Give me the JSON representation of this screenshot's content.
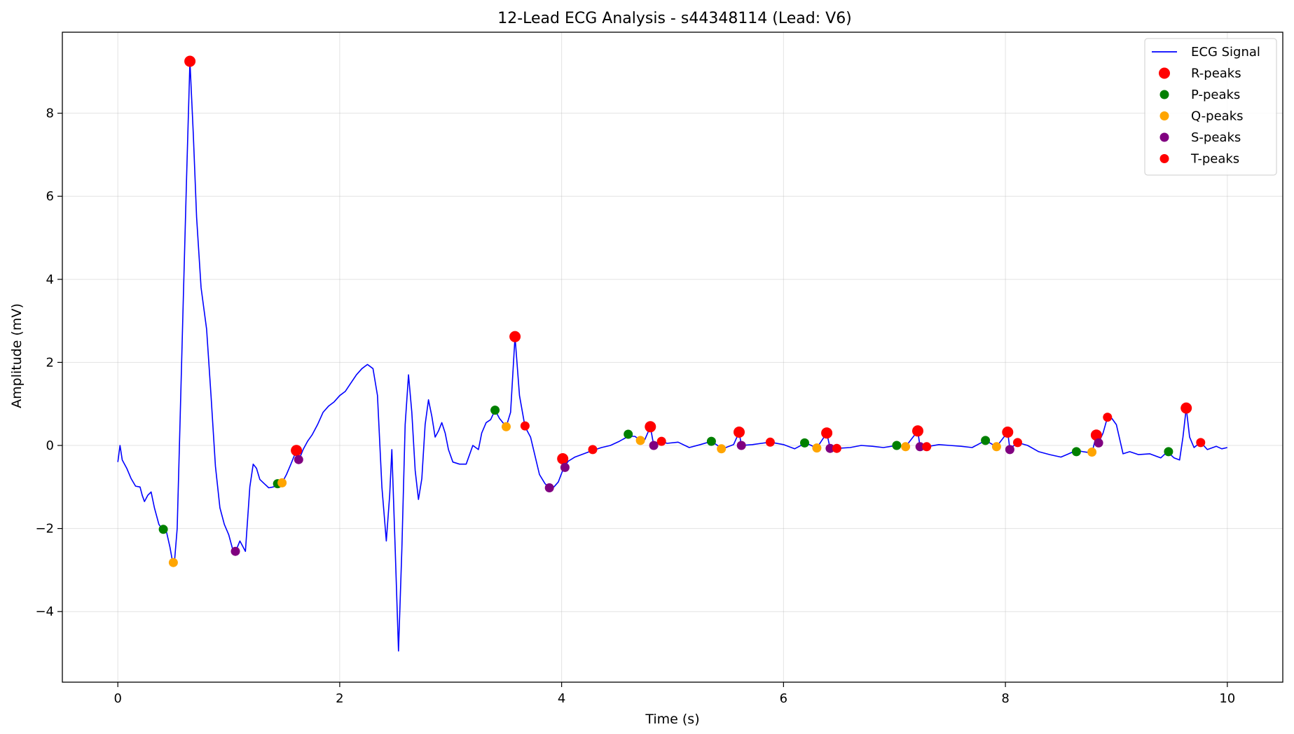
{
  "chart_data": {
    "type": "line",
    "title": "12-Lead ECG Analysis - s44348114 (Lead: V6)",
    "xlabel": "Time (s)",
    "ylabel": "Amplitude (mV)",
    "xlim": [
      -0.5,
      10.5
    ],
    "ylim": [
      -5.7,
      9.95
    ],
    "xticks": [
      0,
      2,
      4,
      6,
      8,
      10
    ],
    "xtick_labels": [
      "0",
      "2",
      "4",
      "6",
      "8",
      "10"
    ],
    "yticks": [
      -4,
      -2,
      0,
      2,
      4,
      6,
      8
    ],
    "ytick_labels": [
      "−4",
      "−2",
      "0",
      "2",
      "4",
      "6",
      "8"
    ],
    "grid": true,
    "legend_position": "top-right",
    "series": [
      {
        "name": "ECG Signal",
        "kind": "line",
        "color": "#0000ff",
        "points": [
          [
            0,
            -0.4
          ],
          [
            0.02,
            0.0
          ],
          [
            0.04,
            -0.35
          ],
          [
            0.08,
            -0.55
          ],
          [
            0.12,
            -0.8
          ],
          [
            0.16,
            -0.98
          ],
          [
            0.2,
            -1.0
          ],
          [
            0.22,
            -1.2
          ],
          [
            0.24,
            -1.35
          ],
          [
            0.27,
            -1.2
          ],
          [
            0.3,
            -1.12
          ],
          [
            0.33,
            -1.5
          ],
          [
            0.37,
            -1.9
          ],
          [
            0.41,
            -2.05
          ],
          [
            0.44,
            -2.1
          ],
          [
            0.47,
            -2.45
          ],
          [
            0.49,
            -2.75
          ],
          [
            0.51,
            -2.83
          ],
          [
            0.535,
            -2.0
          ],
          [
            0.56,
            0.5
          ],
          [
            0.59,
            3.5
          ],
          [
            0.62,
            6.5
          ],
          [
            0.65,
            9.25
          ],
          [
            0.68,
            7.5
          ],
          [
            0.71,
            5.5
          ],
          [
            0.75,
            3.8
          ],
          [
            0.8,
            2.8
          ],
          [
            0.84,
            1.2
          ],
          [
            0.88,
            -0.5
          ],
          [
            0.92,
            -1.5
          ],
          [
            0.96,
            -1.9
          ],
          [
            1.0,
            -2.15
          ],
          [
            1.04,
            -2.55
          ],
          [
            1.07,
            -2.5
          ],
          [
            1.1,
            -2.3
          ],
          [
            1.15,
            -2.55
          ],
          [
            1.19,
            -1.0
          ],
          [
            1.22,
            -0.45
          ],
          [
            1.25,
            -0.55
          ],
          [
            1.28,
            -0.82
          ],
          [
            1.32,
            -0.92
          ],
          [
            1.36,
            -1.02
          ],
          [
            1.4,
            -1.0
          ],
          [
            1.44,
            -0.95
          ],
          [
            1.48,
            -0.9
          ],
          [
            1.52,
            -0.7
          ],
          [
            1.56,
            -0.45
          ],
          [
            1.61,
            -0.12
          ],
          [
            1.64,
            -0.3
          ],
          [
            1.67,
            -0.1
          ],
          [
            1.71,
            0.1
          ],
          [
            1.75,
            0.25
          ],
          [
            1.8,
            0.5
          ],
          [
            1.85,
            0.8
          ],
          [
            1.9,
            0.95
          ],
          [
            1.95,
            1.05
          ],
          [
            2.0,
            1.2
          ],
          [
            2.05,
            1.3
          ],
          [
            2.1,
            1.5
          ],
          [
            2.15,
            1.7
          ],
          [
            2.2,
            1.85
          ],
          [
            2.25,
            1.95
          ],
          [
            2.3,
            1.85
          ],
          [
            2.34,
            1.2
          ],
          [
            2.38,
            -1.0
          ],
          [
            2.42,
            -2.3
          ],
          [
            2.45,
            -1.2
          ],
          [
            2.47,
            -0.1
          ],
          [
            2.5,
            -2.5
          ],
          [
            2.53,
            -4.95
          ],
          [
            2.56,
            -2.5
          ],
          [
            2.59,
            0.5
          ],
          [
            2.62,
            1.7
          ],
          [
            2.65,
            0.8
          ],
          [
            2.68,
            -0.6
          ],
          [
            2.71,
            -1.3
          ],
          [
            2.74,
            -0.8
          ],
          [
            2.77,
            0.5
          ],
          [
            2.8,
            1.1
          ],
          [
            2.83,
            0.7
          ],
          [
            2.86,
            0.2
          ],
          [
            2.89,
            0.35
          ],
          [
            2.92,
            0.55
          ],
          [
            2.95,
            0.3
          ],
          [
            2.98,
            -0.1
          ],
          [
            3.02,
            -0.4
          ],
          [
            3.08,
            -0.45
          ],
          [
            3.14,
            -0.45
          ],
          [
            3.2,
            0.0
          ],
          [
            3.25,
            -0.1
          ],
          [
            3.28,
            0.3
          ],
          [
            3.32,
            0.55
          ],
          [
            3.36,
            0.62
          ],
          [
            3.4,
            0.85
          ],
          [
            3.44,
            0.65
          ],
          [
            3.5,
            0.45
          ],
          [
            3.54,
            0.8
          ],
          [
            3.58,
            2.62
          ],
          [
            3.62,
            1.2
          ],
          [
            3.67,
            0.45
          ],
          [
            3.72,
            0.2
          ],
          [
            3.8,
            -0.7
          ],
          [
            3.85,
            -0.92
          ],
          [
            3.89,
            -1.02
          ],
          [
            3.93,
            -1.0
          ],
          [
            3.97,
            -0.88
          ],
          [
            4.02,
            -0.53
          ],
          [
            4.06,
            -0.38
          ],
          [
            4.12,
            -0.28
          ],
          [
            4.2,
            -0.2
          ],
          [
            4.28,
            -0.12
          ],
          [
            4.36,
            -0.05
          ],
          [
            4.44,
            0.0
          ],
          [
            4.52,
            0.1
          ],
          [
            4.6,
            0.22
          ],
          [
            4.66,
            0.22
          ],
          [
            4.71,
            0.12
          ],
          [
            4.75,
            0.14
          ],
          [
            4.8,
            0.45
          ],
          [
            4.83,
            0.0
          ],
          [
            4.88,
            0.12
          ],
          [
            4.95,
            0.05
          ],
          [
            5.05,
            0.08
          ],
          [
            5.15,
            -0.05
          ],
          [
            5.25,
            0.02
          ],
          [
            5.35,
            0.1
          ],
          [
            5.45,
            -0.08
          ],
          [
            5.55,
            0.02
          ],
          [
            5.6,
            0.32
          ],
          [
            5.62,
            0.0
          ],
          [
            5.72,
            0.02
          ],
          [
            5.8,
            0.05
          ],
          [
            5.88,
            0.08
          ],
          [
            6.0,
            0.02
          ],
          [
            6.1,
            -0.08
          ],
          [
            6.2,
            0.06
          ],
          [
            6.3,
            -0.06
          ],
          [
            6.39,
            0.3
          ],
          [
            6.42,
            -0.07
          ],
          [
            6.48,
            -0.07
          ],
          [
            6.6,
            -0.05
          ],
          [
            6.7,
            0.0
          ],
          [
            6.8,
            -0.02
          ],
          [
            6.9,
            -0.05
          ],
          [
            7.02,
            0.0
          ],
          [
            7.1,
            -0.03
          ],
          [
            7.21,
            0.35
          ],
          [
            7.23,
            -0.03
          ],
          [
            7.29,
            -0.03
          ],
          [
            7.4,
            0.02
          ],
          [
            7.5,
            0.0
          ],
          [
            7.6,
            -0.02
          ],
          [
            7.7,
            -0.05
          ],
          [
            7.82,
            0.12
          ],
          [
            7.92,
            -0.03
          ],
          [
            8.02,
            0.32
          ],
          [
            8.04,
            -0.08
          ],
          [
            8.11,
            0.07
          ],
          [
            8.2,
            0.0
          ],
          [
            8.3,
            -0.15
          ],
          [
            8.4,
            -0.22
          ],
          [
            8.5,
            -0.28
          ],
          [
            8.57,
            -0.2
          ],
          [
            8.64,
            -0.12
          ],
          [
            8.7,
            -0.15
          ],
          [
            8.78,
            -0.18
          ],
          [
            8.82,
            0.25
          ],
          [
            8.84,
            0.06
          ],
          [
            8.88,
            0.3
          ],
          [
            8.92,
            0.68
          ],
          [
            8.96,
            0.65
          ],
          [
            9.0,
            0.5
          ],
          [
            9.06,
            -0.2
          ],
          [
            9.12,
            -0.15
          ],
          [
            9.2,
            -0.22
          ],
          [
            9.3,
            -0.2
          ],
          [
            9.4,
            -0.3
          ],
          [
            9.46,
            -0.15
          ],
          [
            9.52,
            -0.3
          ],
          [
            9.57,
            -0.35
          ],
          [
            9.6,
            0.2
          ],
          [
            9.63,
            0.9
          ],
          [
            9.66,
            0.2
          ],
          [
            9.7,
            -0.05
          ],
          [
            9.76,
            0.08
          ],
          [
            9.82,
            -0.1
          ],
          [
            9.9,
            -0.02
          ],
          [
            9.95,
            -0.08
          ],
          [
            10.0,
            -0.05
          ]
        ]
      },
      {
        "name": "R-peaks",
        "kind": "scatter",
        "size": "large",
        "color": "#ff0000",
        "points": [
          [
            0.65,
            9.25
          ],
          [
            1.61,
            -0.12
          ],
          [
            3.58,
            2.62
          ],
          [
            4.01,
            -0.32
          ],
          [
            4.8,
            0.45
          ],
          [
            5.6,
            0.32
          ],
          [
            6.39,
            0.3
          ],
          [
            7.21,
            0.35
          ],
          [
            8.02,
            0.32
          ],
          [
            8.82,
            0.25
          ],
          [
            9.63,
            0.9
          ]
        ]
      },
      {
        "name": "P-peaks",
        "kind": "scatter",
        "size": "small",
        "color": "#008000",
        "points": [
          [
            0.41,
            -2.02
          ],
          [
            1.44,
            -0.92
          ],
          [
            3.4,
            0.85
          ],
          [
            4.6,
            0.27
          ],
          [
            5.35,
            0.1
          ],
          [
            6.19,
            0.06
          ],
          [
            7.02,
            0.0
          ],
          [
            7.82,
            0.12
          ],
          [
            8.64,
            -0.15
          ],
          [
            9.47,
            -0.15
          ]
        ]
      },
      {
        "name": "Q-peaks",
        "kind": "scatter",
        "size": "small",
        "color": "#ffa500",
        "points": [
          [
            0.5,
            -2.82
          ],
          [
            1.48,
            -0.9
          ],
          [
            3.5,
            0.45
          ],
          [
            4.71,
            0.12
          ],
          [
            5.44,
            -0.08
          ],
          [
            6.3,
            -0.06
          ],
          [
            7.1,
            -0.03
          ],
          [
            7.92,
            -0.03
          ],
          [
            8.78,
            -0.16
          ]
        ]
      },
      {
        "name": "S-peaks",
        "kind": "scatter",
        "size": "small",
        "color": "#800080",
        "points": [
          [
            1.06,
            -2.55
          ],
          [
            1.63,
            -0.34
          ],
          [
            3.89,
            -1.02
          ],
          [
            4.03,
            -0.53
          ],
          [
            4.83,
            0.0
          ],
          [
            5.62,
            0.0
          ],
          [
            6.42,
            -0.07
          ],
          [
            7.23,
            -0.03
          ],
          [
            8.04,
            -0.1
          ],
          [
            8.84,
            0.06
          ]
        ]
      },
      {
        "name": "T-peaks",
        "kind": "scatter",
        "size": "small",
        "color": "#ff0000",
        "points": [
          [
            3.67,
            0.47
          ],
          [
            4.28,
            -0.1
          ],
          [
            4.9,
            0.1
          ],
          [
            5.88,
            0.08
          ],
          [
            6.48,
            -0.07
          ],
          [
            7.29,
            -0.03
          ],
          [
            8.11,
            0.07
          ],
          [
            8.92,
            0.68
          ],
          [
            9.76,
            0.07
          ]
        ]
      }
    ]
  }
}
